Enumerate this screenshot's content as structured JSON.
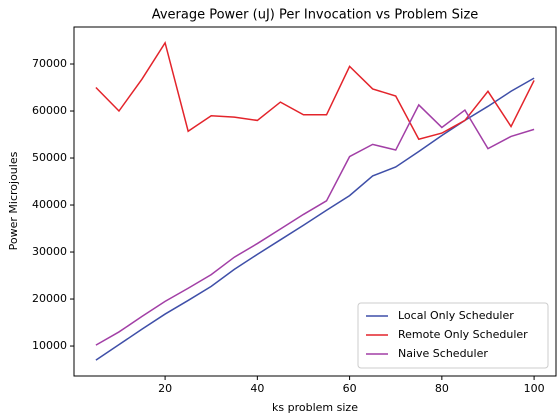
{
  "chart_data": {
    "type": "line",
    "title": "Average Power (uJ) Per Invocation vs Problem Size",
    "x_label": "ks problem size",
    "y_label": "Power Microjoules",
    "x": [
      5,
      10,
      15,
      20,
      25,
      30,
      35,
      40,
      45,
      50,
      55,
      60,
      65,
      70,
      75,
      80,
      85,
      90,
      95,
      100
    ],
    "series": [
      {
        "name": "Local Only Scheduler",
        "color": "#3f4fa8",
        "values": [
          7000,
          10300,
          13600,
          16800,
          19700,
          22700,
          26300,
          29500,
          32600,
          35700,
          38900,
          42000,
          46200,
          48100,
          51400,
          54800,
          58000,
          61000,
          64200,
          67000
        ]
      },
      {
        "name": "Remote Only Scheduler",
        "color": "#e3242b",
        "values": [
          65000,
          60000,
          66800,
          74500,
          55700,
          59000,
          58700,
          58000,
          61900,
          59200,
          59200,
          69500,
          64700,
          63200,
          54000,
          55300,
          58000,
          64200,
          56700,
          66500
        ]
      },
      {
        "name": "Naive Scheduler",
        "color": "#a23fa6",
        "values": [
          10200,
          13000,
          16300,
          19500,
          22300,
          25200,
          28900,
          31800,
          34900,
          38000,
          40900,
          50300,
          52900,
          51700,
          61300,
          56500,
          60200,
          52000,
          54600,
          56100
        ]
      }
    ],
    "xlim": [
      0.25,
      104.75
    ],
    "ylim": [
      3625,
      77875
    ],
    "xticks": [
      20,
      40,
      60,
      80,
      100
    ],
    "yticks": [
      10000,
      20000,
      30000,
      40000,
      50000,
      60000,
      70000
    ],
    "legend": "lower right",
    "grid": false
  }
}
